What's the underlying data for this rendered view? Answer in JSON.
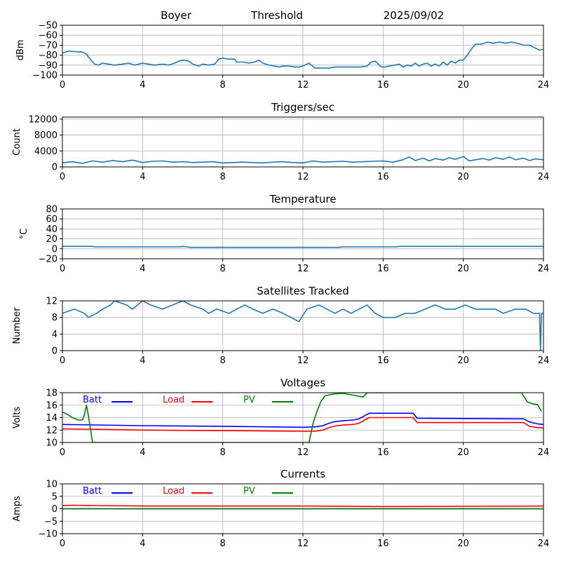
{
  "header": {
    "station": "Boyer",
    "mode": "Threshold",
    "date": "2025/09/02"
  },
  "chart_data": [
    {
      "type": "line",
      "title": "",
      "ylabel": "dBm",
      "xlim": [
        0,
        24
      ],
      "ylim": [
        -100,
        -50
      ],
      "xticks": [
        0,
        4,
        8,
        12,
        16,
        20,
        24
      ],
      "yticks": [
        -100,
        -90,
        -80,
        -70,
        -60,
        -50
      ],
      "grid": true,
      "series": [
        {
          "color": "#1f77b4",
          "x": [
            0,
            0.3,
            1.0,
            1.2,
            1.3,
            1.6,
            1.8,
            2.0,
            2.3,
            2.6,
            3.0,
            3.3,
            3.6,
            3.8,
            4.0,
            4.3,
            4.6,
            5.0,
            5.3,
            5.6,
            5.8,
            6.0,
            6.3,
            6.5,
            6.8,
            7.0,
            7.3,
            7.6,
            7.8,
            8.0,
            8.3,
            8.6,
            8.7,
            9.0,
            9.3,
            9.6,
            9.8,
            10.0,
            10.3,
            10.6,
            10.8,
            11.0,
            11.3,
            11.6,
            11.8,
            12.0,
            12.3,
            12.6,
            12.9,
            13.3,
            13.6,
            14.0,
            14.3,
            14.6,
            14.9,
            15.2,
            15.4,
            15.6,
            15.9,
            16.1,
            16.3,
            16.6,
            16.8,
            17.0,
            17.2,
            17.4,
            17.6,
            17.8,
            18.0,
            18.2,
            18.4,
            18.6,
            18.8,
            19.0,
            19.2,
            19.4,
            19.6,
            19.8,
            20.0,
            20.2,
            20.4,
            20.6,
            20.9,
            21.2,
            21.5,
            21.8,
            22.1,
            22.4,
            22.7,
            23.0,
            23.3,
            23.6,
            23.8,
            24.0
          ],
          "y": [
            -78,
            -76,
            -77,
            -79,
            -82,
            -89,
            -90,
            -88,
            -89,
            -90,
            -89,
            -88,
            -90,
            -89,
            -88,
            -89,
            -90,
            -89,
            -90,
            -88,
            -86,
            -85,
            -86,
            -89,
            -91,
            -89,
            -90,
            -89,
            -84,
            -83,
            -84,
            -84,
            -87,
            -87,
            -88,
            -87,
            -85,
            -88,
            -90,
            -91,
            -92,
            -91,
            -91,
            -92,
            -92,
            -91,
            -88,
            -93,
            -93,
            -93,
            -92,
            -92,
            -92,
            -92,
            -92,
            -91,
            -87,
            -86,
            -92,
            -92,
            -91,
            -90,
            -89,
            -92,
            -90,
            -91,
            -88,
            -91,
            -89,
            -88,
            -91,
            -89,
            -91,
            -87,
            -90,
            -86,
            -88,
            -85,
            -85,
            -80,
            -74,
            -69,
            -69,
            -67,
            -68,
            -67,
            -68,
            -67,
            -68,
            -70,
            -70,
            -73,
            -75,
            -74
          ]
        }
      ]
    },
    {
      "type": "line",
      "title": "Triggers/sec",
      "ylabel": "Count",
      "xlim": [
        0,
        24
      ],
      "ylim": [
        0,
        12500
      ],
      "xticks": [
        0,
        4,
        8,
        12,
        16,
        20,
        24
      ],
      "yticks": [
        0,
        4000,
        8000,
        12000
      ],
      "grid": true,
      "series": [
        {
          "color": "#1f77b4",
          "x": [
            0,
            0.5,
            1.0,
            1.5,
            2.0,
            2.5,
            3.0,
            3.5,
            4.0,
            4.5,
            5.0,
            5.5,
            6.0,
            6.5,
            7.0,
            7.5,
            8.0,
            8.5,
            9.0,
            9.5,
            10.0,
            10.5,
            11.0,
            11.5,
            12.0,
            12.5,
            13.0,
            13.5,
            14.0,
            14.5,
            15.0,
            15.5,
            16.0,
            16.5,
            17.0,
            17.3,
            17.6,
            18.0,
            18.3,
            18.6,
            19.0,
            19.3,
            19.6,
            20.0,
            20.3,
            20.6,
            21.0,
            21.3,
            21.6,
            22.0,
            22.3,
            22.6,
            23.0,
            23.3,
            23.6,
            24.0
          ],
          "y": [
            1000,
            1300,
            900,
            1500,
            1200,
            1600,
            1300,
            1700,
            1100,
            1400,
            1500,
            1200,
            1300,
            1100,
            1200,
            1300,
            1000,
            1100,
            1200,
            1100,
            1000,
            1200,
            1300,
            1100,
            1000,
            1500,
            1200,
            1300,
            1400,
            1200,
            1300,
            1400,
            1500,
            1200,
            1800,
            2500,
            1600,
            2200,
            1500,
            2100,
            1700,
            2300,
            1900,
            2600,
            1500,
            1800,
            2100,
            1700,
            2300,
            1900,
            2500,
            1800,
            2200,
            1600,
            2000,
            1800
          ]
        }
      ]
    },
    {
      "type": "line",
      "title": "Temperature",
      "ylabel": "°C",
      "xlim": [
        0,
        24
      ],
      "ylim": [
        -20,
        80
      ],
      "xticks": [
        0,
        4,
        8,
        12,
        16,
        20,
        24
      ],
      "yticks": [
        -20,
        0,
        20,
        40,
        60,
        80
      ],
      "grid": true,
      "series": [
        {
          "color": "#1f77b4",
          "x": [
            0,
            1.5,
            1.6,
            5.8,
            6.0,
            6.2,
            6.4,
            13.8,
            14.0,
            16.6,
            16.8,
            24
          ],
          "y": [
            5,
            5,
            4,
            4,
            5,
            4,
            3,
            3,
            4,
            4,
            5,
            5
          ]
        }
      ]
    },
    {
      "type": "line",
      "title": "Satellites Tracked",
      "ylabel": "Number",
      "xlim": [
        0,
        24
      ],
      "ylim": [
        0,
        12
      ],
      "xticks": [
        0,
        4,
        8,
        12,
        16,
        20,
        24
      ],
      "yticks": [
        0,
        4,
        8,
        12
      ],
      "grid": true,
      "series": [
        {
          "color": "#1f77b4",
          "x": [
            0,
            0.6,
            1.1,
            1.3,
            1.7,
            2.0,
            2.4,
            2.6,
            3.2,
            3.5,
            4.0,
            4.4,
            5.0,
            5.5,
            6.0,
            6.4,
            7.0,
            7.3,
            7.7,
            8.3,
            8.7,
            9.1,
            9.5,
            10.0,
            10.5,
            11.0,
            11.4,
            11.8,
            12.2,
            12.8,
            13.2,
            13.6,
            14.0,
            14.4,
            14.8,
            15.2,
            15.6,
            16.0,
            16.6,
            17.1,
            17.6,
            18.1,
            18.6,
            19.1,
            19.6,
            20.1,
            20.6,
            21.1,
            21.6,
            22.0,
            22.6,
            23.1,
            23.5,
            23.8,
            23.85,
            23.9,
            24.0
          ],
          "y": [
            9,
            10,
            9,
            8,
            9,
            10,
            11,
            12,
            11,
            10,
            12,
            11,
            10,
            11,
            12,
            11,
            10,
            9,
            10,
            9,
            10,
            11,
            10,
            9,
            10,
            9,
            8,
            7,
            10,
            11,
            10,
            9,
            10,
            9,
            10,
            11,
            9,
            8,
            8,
            9,
            9,
            10,
            11,
            10,
            10,
            11,
            10,
            10,
            10,
            9,
            10,
            10,
            9,
            9,
            0,
            9,
            9
          ]
        }
      ]
    },
    {
      "type": "line",
      "title": "Voltages",
      "ylabel": "Volts",
      "xlim": [
        0,
        24
      ],
      "ylim": [
        10,
        18
      ],
      "xticks": [
        0,
        4,
        8,
        12,
        16,
        20,
        24
      ],
      "yticks": [
        10,
        12,
        14,
        16,
        18
      ],
      "grid": true,
      "legend": "top-left",
      "series": [
        {
          "name": "Batt",
          "color": "#0000ff",
          "x": [
            0,
            4,
            8,
            12,
            12.6,
            13.0,
            13.3,
            13.6,
            14.0,
            14.5,
            14.8,
            15.3,
            17.5,
            17.7,
            23.0,
            23.3,
            23.7,
            24.0
          ],
          "y": [
            12.9,
            12.7,
            12.6,
            12.45,
            12.5,
            12.7,
            13.1,
            13.35,
            13.5,
            13.6,
            13.8,
            14.7,
            14.7,
            13.9,
            13.8,
            13.3,
            13.0,
            12.9
          ]
        },
        {
          "name": "Load",
          "color": "#ff0000",
          "x": [
            0,
            4,
            8,
            12,
            12.6,
            13.0,
            13.3,
            13.6,
            14.0,
            14.5,
            14.8,
            15.3,
            17.5,
            17.7,
            23.0,
            23.3,
            23.7,
            24.0
          ],
          "y": [
            12.2,
            12.0,
            11.9,
            11.8,
            11.8,
            12.0,
            12.4,
            12.65,
            12.8,
            12.9,
            13.1,
            14.0,
            14.0,
            13.2,
            13.2,
            12.6,
            12.4,
            12.3
          ]
        },
        {
          "name": "PV",
          "color": "#008000",
          "x": [
            0,
            0.2,
            0.5,
            0.8,
            1.0,
            1.1,
            1.2,
            1.3,
            1.4,
            1.5,
            12.3,
            12.5,
            12.7,
            12.9,
            13.1,
            13.5,
            14.0,
            14.5,
            15.0,
            15.2,
            22.9,
            23.2,
            23.5,
            23.7,
            23.9
          ],
          "y": [
            14.9,
            14.6,
            14.0,
            13.6,
            13.6,
            14.5,
            16.0,
            14.2,
            12.2,
            10.0,
            10.0,
            13.0,
            15.0,
            16.6,
            17.5,
            17.8,
            17.9,
            17.6,
            17.3,
            18.0,
            18.0,
            16.5,
            16.2,
            16.1,
            15.0
          ]
        }
      ]
    },
    {
      "type": "line",
      "title": "Currents",
      "ylabel": "Amps",
      "xlim": [
        0,
        24
      ],
      "ylim": [
        -10,
        10
      ],
      "xticks": [
        0,
        4,
        8,
        12,
        16,
        20,
        24
      ],
      "yticks": [
        -10,
        -5,
        0,
        5,
        10
      ],
      "grid": true,
      "legend": "top-left",
      "series": [
        {
          "name": "Batt",
          "color": "#0000ff",
          "x": [
            0,
            24
          ],
          "y": [
            0.0,
            0.0
          ]
        },
        {
          "name": "Load",
          "color": "#ff0000",
          "x": [
            0,
            0.5,
            4,
            8,
            12,
            16,
            20,
            24
          ],
          "y": [
            1.3,
            1.4,
            1.1,
            1.1,
            1.1,
            0.9,
            1.0,
            1.1
          ]
        },
        {
          "name": "PV",
          "color": "#008000",
          "x": [
            0,
            24
          ],
          "y": [
            0.0,
            0.0
          ]
        }
      ]
    }
  ]
}
